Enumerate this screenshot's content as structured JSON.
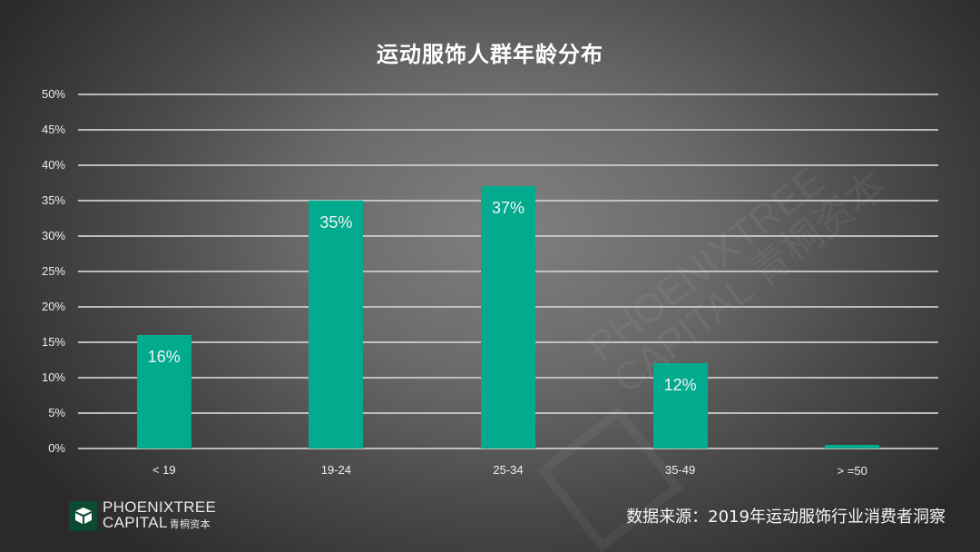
{
  "title": "运动服饰人群年龄分布",
  "chart_data": {
    "type": "bar",
    "title": "运动服饰人群年龄分布",
    "categories": [
      "< 19",
      "19-24",
      "25-34",
      "35-49",
      "> =50"
    ],
    "values": [
      16,
      35,
      37,
      12,
      0.5
    ],
    "value_labels": [
      "16%",
      "35%",
      "37%",
      "12%",
      ""
    ],
    "xlabel": "",
    "ylabel": "",
    "ylim": [
      0,
      50
    ],
    "yticks": [
      "0%",
      "5%",
      "10%",
      "15%",
      "20%",
      "25%",
      "30%",
      "35%",
      "40%",
      "45%",
      "50%"
    ],
    "grid": true,
    "legend": "none",
    "bar_color": "#03ab8e"
  },
  "footer": {
    "logo": {
      "line1": "PHOENIXTREE",
      "line2": "CAPITAL",
      "chinese": "青桐资本",
      "icon": "cube-logo-icon"
    },
    "source": "数据来源：2019年运动服饰行业消费者洞察"
  },
  "watermark": {
    "line1": "PHOENIXTREE",
    "line2": "CAPITAL 青桐资本"
  }
}
